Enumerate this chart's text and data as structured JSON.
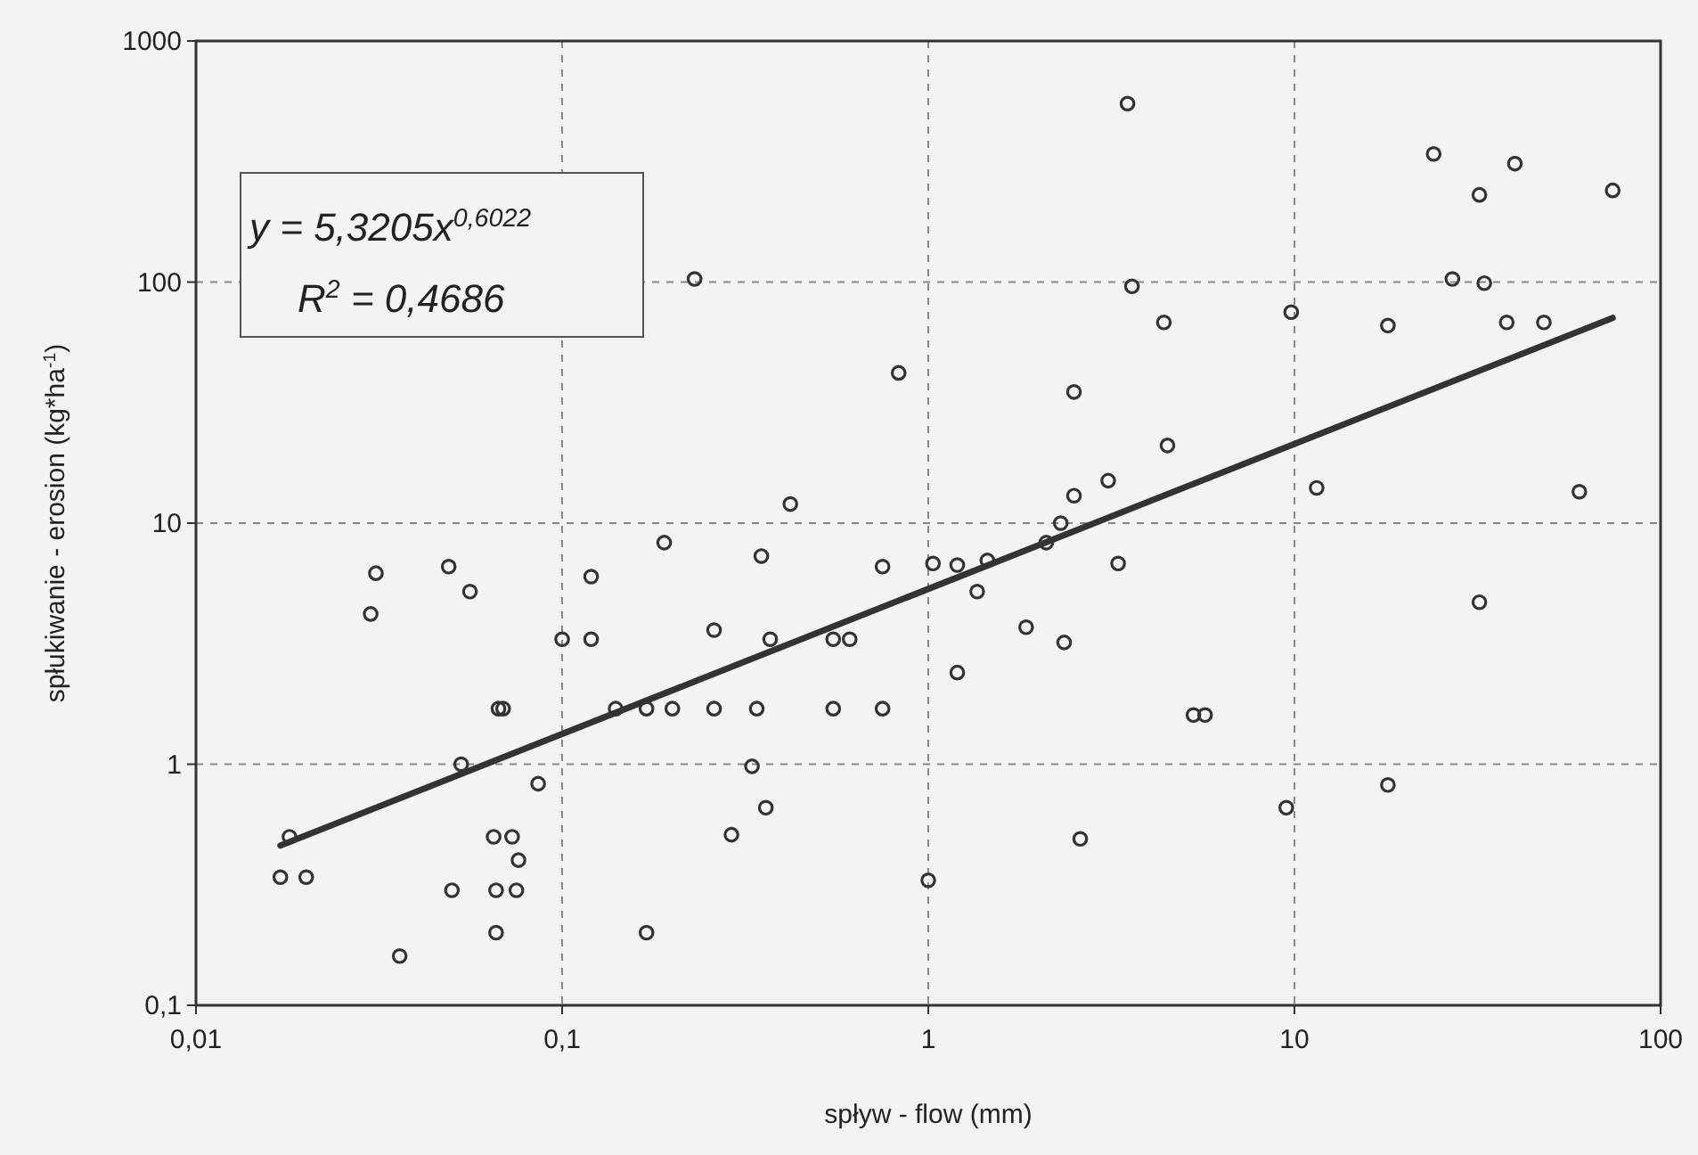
{
  "chart_data": {
    "type": "scatter",
    "xlabel": "spływ - flow (mm)",
    "ylabel": "spłukiwanie - erosion (kg*ha$^{-1}$)",
    "annotations": [
      "y = 5,3205x$^{0,6022}$",
      "R$^{2}$ = 0,4686"
    ],
    "log": "xy",
    "grid": true,
    "xlim": [
      0.01,
      100
    ],
    "xticks": [
      {
        "value": 0.01,
        "label": "0,01"
      },
      {
        "value": 0.1,
        "label": "0,1"
      },
      1,
      10,
      100
    ],
    "ylim": [
      0.1,
      1000
    ],
    "yticks": [
      {
        "value": 0.1,
        "label": "0,1"
      },
      1,
      10,
      100,
      1000
    ],
    "series": [
      {
        "color": "#333333",
        "marker": "circle",
        "x": [
          0.031,
          0.049,
          0.056,
          0.03,
          0.12,
          0.1,
          0.12,
          0.067,
          0.069,
          0.14,
          0.053,
          0.086,
          0.018,
          0.065,
          0.073,
          0.076,
          0.017,
          0.02,
          0.05,
          0.066,
          0.075,
          0.066,
          0.036,
          0.42,
          0.19,
          0.35,
          0.75,
          1.03,
          1.2,
          1.45,
          1.36,
          2.1,
          2.3,
          2.5,
          3.1,
          3.3,
          0.26,
          0.37,
          0.55,
          0.61,
          1.85,
          2.35,
          1.2,
          0.17,
          0.2,
          0.26,
          0.34,
          0.55,
          0.75,
          0.33,
          0.36,
          0.29,
          2.6,
          1.0,
          0.17,
          0.23,
          0.83,
          3.5,
          24,
          40,
          32,
          74,
          3.6,
          27,
          33,
          4.4,
          9.8,
          18,
          38,
          48,
          2.5,
          4.5,
          11.5,
          60,
          32,
          5.3,
          5.7,
          18,
          9.5
        ],
        "values": [
          6.2,
          6.6,
          5.2,
          4.2,
          6.0,
          3.3,
          3.3,
          1.7,
          1.7,
          1.7,
          1.0,
          0.83,
          0.5,
          0.5,
          0.5,
          0.4,
          0.34,
          0.34,
          0.3,
          0.3,
          0.3,
          0.2,
          0.16,
          12,
          8.3,
          7.3,
          6.6,
          6.8,
          6.7,
          7.0,
          5.2,
          8.3,
          10,
          13,
          15,
          6.8,
          3.6,
          3.3,
          3.3,
          3.3,
          3.7,
          3.2,
          2.4,
          1.7,
          1.7,
          1.7,
          1.7,
          1.7,
          1.7,
          0.98,
          0.66,
          0.51,
          0.49,
          0.33,
          0.2,
          103,
          42,
          550,
          340,
          310,
          230,
          240,
          96,
          103,
          99,
          68,
          75,
          66,
          68,
          68,
          35,
          21,
          14,
          13.5,
          4.7,
          1.6,
          1.6,
          0.82,
          0.66
        ]
      },
      {
        "type": "line",
        "color": "#333333",
        "line_style": "solid",
        "x": [
          0.017,
          74
        ],
        "values": [
          0.46,
          71
        ]
      }
    ]
  }
}
